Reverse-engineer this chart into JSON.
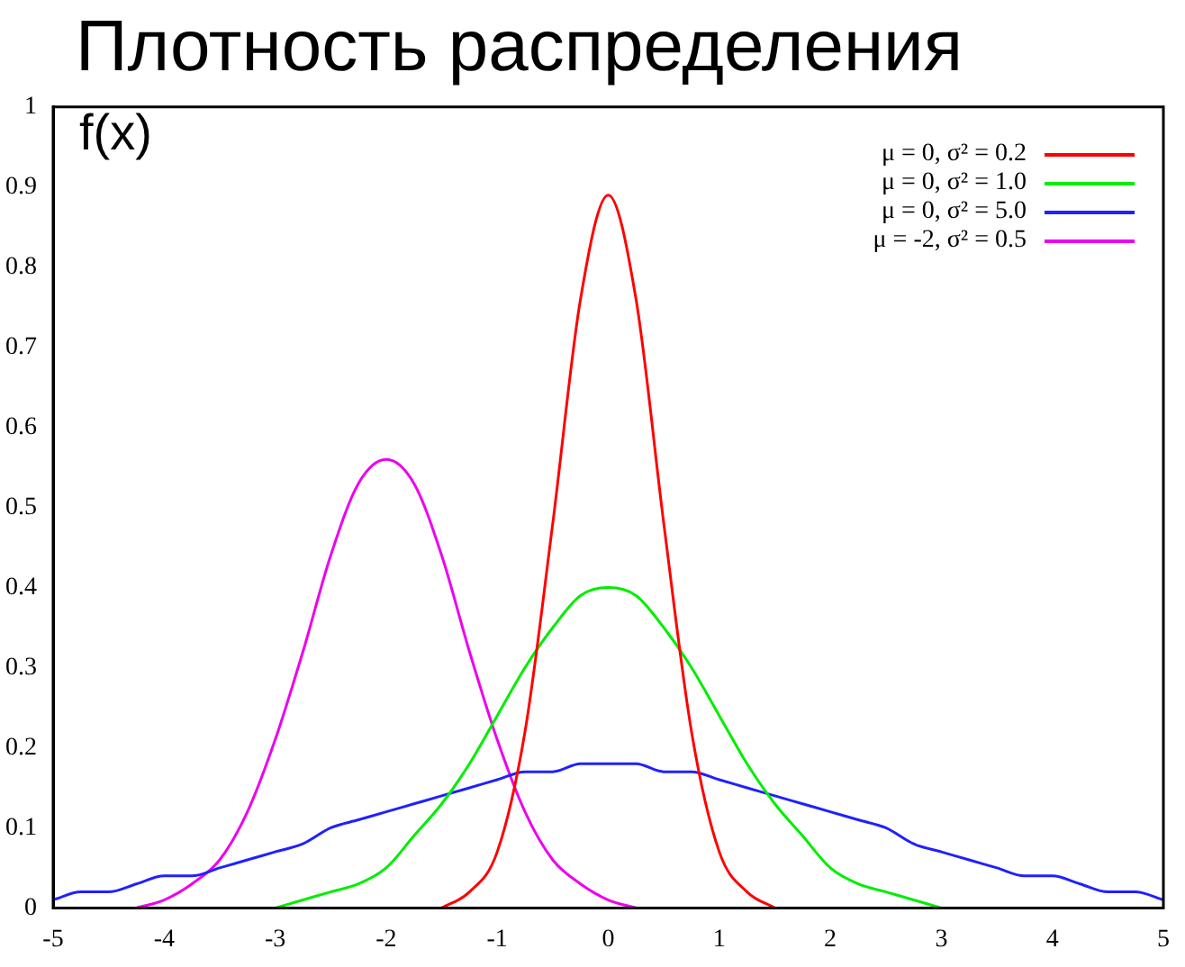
{
  "chart_data": {
    "type": "line",
    "title": "Плотность распределения",
    "ylabel": "f(x)",
    "x": [
      -5,
      -4.75,
      -4.5,
      -4.25,
      -4,
      -3.75,
      -3.5,
      -3.25,
      -3,
      -2.75,
      -2.5,
      -2.25,
      -2,
      -1.75,
      -1.5,
      -1.25,
      -1,
      -0.75,
      -0.5,
      -0.25,
      0,
      0.25,
      0.5,
      0.75,
      1,
      1.25,
      1.5,
      1.75,
      2,
      2.25,
      2.5,
      2.75,
      3,
      3.25,
      3.5,
      3.75,
      4,
      4.25,
      4.5,
      4.75,
      5
    ],
    "series": [
      {
        "name": "μ = 0, σ² = 0.2",
        "color": "#ff0000",
        "values": [
          null,
          null,
          null,
          null,
          null,
          null,
          null,
          null,
          null,
          null,
          null,
          null,
          null,
          null,
          0,
          0.02,
          0.07,
          0.22,
          0.48,
          0.76,
          0.89,
          0.76,
          0.48,
          0.22,
          0.07,
          0.02,
          0,
          null,
          null,
          null,
          null,
          null,
          null,
          null,
          null,
          null,
          null,
          null,
          null,
          null,
          null
        ]
      },
      {
        "name": "μ = 0, σ² = 1.0",
        "color": "#00ee00",
        "values": [
          null,
          null,
          null,
          null,
          null,
          null,
          null,
          null,
          0,
          0.01,
          0.02,
          0.03,
          0.05,
          0.09,
          0.13,
          0.18,
          0.24,
          0.3,
          0.35,
          0.39,
          0.4,
          0.39,
          0.35,
          0.3,
          0.24,
          0.18,
          0.13,
          0.09,
          0.05,
          0.03,
          0.02,
          0.01,
          0,
          null,
          null,
          null,
          null,
          null,
          null,
          null,
          null
        ]
      },
      {
        "name": "μ = 0, σ² = 5.0",
        "color": "#2020ff",
        "values": [
          0.01,
          0.02,
          0.02,
          0.03,
          0.04,
          0.04,
          0.05,
          0.06,
          0.07,
          0.08,
          0.1,
          0.11,
          0.12,
          0.13,
          0.14,
          0.15,
          0.16,
          0.17,
          0.17,
          0.18,
          0.18,
          0.18,
          0.17,
          0.17,
          0.16,
          0.15,
          0.14,
          0.13,
          0.12,
          0.11,
          0.1,
          0.08,
          0.07,
          0.06,
          0.05,
          0.04,
          0.04,
          0.03,
          0.02,
          0.02,
          0.01
        ]
      },
      {
        "name": "μ = -2, σ² = 0.5",
        "color": "#ee00ee",
        "values": [
          null,
          null,
          null,
          0,
          0.01,
          0.03,
          0.06,
          0.12,
          0.21,
          0.32,
          0.44,
          0.53,
          0.56,
          0.53,
          0.44,
          0.32,
          0.21,
          0.12,
          0.06,
          0.03,
          0.01,
          0,
          null,
          null,
          null,
          null,
          null,
          null,
          null,
          null,
          null,
          null,
          null,
          null,
          null,
          null,
          null,
          null,
          null,
          null,
          null
        ]
      }
    ],
    "xlim": [
      -5,
      5
    ],
    "xticks": [
      -5,
      -4,
      -3,
      -2,
      -1,
      0,
      1,
      2,
      3,
      4,
      5
    ],
    "ylim": [
      0,
      1
    ],
    "yticks": [
      0,
      0.1,
      0.2,
      0.3,
      0.4,
      0.5,
      0.6,
      0.7,
      0.8,
      0.9,
      1
    ],
    "grid": false,
    "legend": "top right",
    "marker": "none",
    "line_style": "solid"
  }
}
